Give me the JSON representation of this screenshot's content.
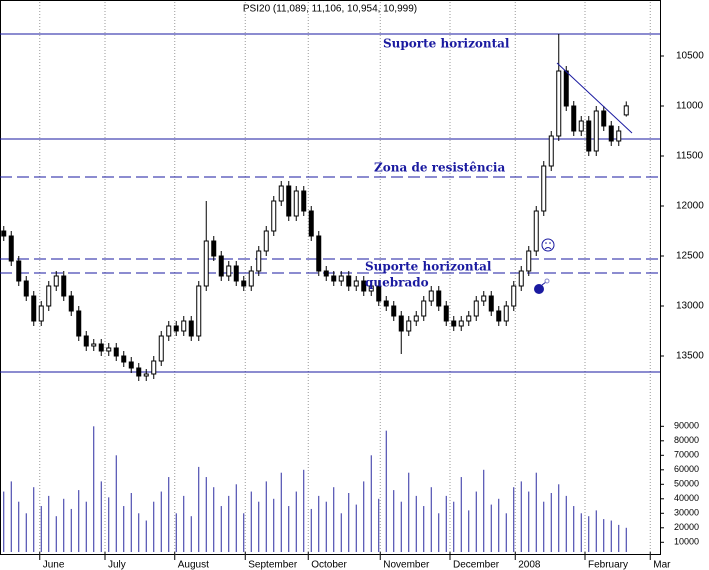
{
  "chart_data": {
    "type": "candlestick",
    "title": "PSI20 (11,089, 11,106, 10,954, 10,999)",
    "categories": [
      null,
      null,
      null,
      null,
      null,
      null,
      null,
      null,
      null,
      null,
      null,
      null,
      null,
      null,
      null,
      null,
      null,
      null,
      null,
      null,
      null,
      null,
      null,
      null,
      null,
      null,
      null,
      null,
      null,
      null,
      null,
      null,
      null,
      null,
      null,
      null,
      null,
      null,
      null,
      null,
      null,
      null,
      null,
      null,
      null,
      null,
      null,
      null,
      null,
      null,
      null,
      null,
      null,
      null,
      null,
      null,
      null,
      null,
      null,
      null,
      null,
      null,
      null,
      null,
      null,
      null,
      null,
      null,
      null,
      null,
      null,
      null,
      null,
      null,
      null,
      null,
      null,
      null,
      null,
      null,
      null,
      null,
      null,
      null
    ],
    "open": [
      12250,
      12300,
      12550,
      12750,
      12900,
      13150,
      13000,
      12800,
      12700,
      12900,
      13050,
      13300,
      13400,
      13380,
      13450,
      13420,
      13500,
      13560,
      13620,
      13700,
      13680,
      13550,
      13300,
      13200,
      13250,
      13150,
      13300,
      12800,
      12350,
      12500,
      12700,
      12600,
      12750,
      12800,
      12650,
      12450,
      12250,
      11950,
      11800,
      12100,
      11850,
      12050,
      12300,
      12650,
      12700,
      12750,
      12700,
      12800,
      12750,
      12850,
      12800,
      12950,
      13000,
      13100,
      13250,
      13150,
      13100,
      12950,
      12850,
      13000,
      13150,
      13200,
      13150,
      13100,
      12950,
      12900,
      13050,
      13150,
      13000,
      12800,
      12650,
      12450,
      12050,
      11600,
      11300,
      10650,
      11000,
      11250,
      11150,
      11450,
      11050,
      11200,
      11350,
      11089
    ],
    "high": [
      12350,
      12600,
      12800,
      12950,
      13200,
      13200,
      13050,
      12850,
      12950,
      13100,
      13350,
      13450,
      13450,
      13500,
      13500,
      13550,
      13610,
      13670,
      13750,
      13750,
      13730,
      13600,
      13350,
      13300,
      13300,
      13350,
      13350,
      12850,
      12550,
      12750,
      12750,
      12800,
      12850,
      12850,
      12700,
      12500,
      12300,
      12000,
      12150,
      12150,
      12100,
      12350,
      12700,
      12750,
      12800,
      12800,
      12850,
      12850,
      12900,
      12900,
      13000,
      13050,
      13150,
      13480,
      13300,
      13200,
      13150,
      13000,
      13050,
      13200,
      13250,
      13250,
      13200,
      13150,
      13000,
      13100,
      13200,
      13200,
      13050,
      12850,
      12700,
      12500,
      12100,
      11650,
      11350,
      11050,
      11300,
      11300,
      11500,
      11500,
      11250,
      11400,
      11400,
      11106
    ],
    "low": [
      12200,
      12250,
      12500,
      12700,
      12850,
      12950,
      12750,
      12650,
      12650,
      12850,
      13000,
      13250,
      13330,
      13330,
      13370,
      13370,
      13450,
      13510,
      13570,
      13630,
      13500,
      13250,
      13150,
      13150,
      13100,
      13100,
      12750,
      11950,
      12300,
      12450,
      12550,
      12550,
      12700,
      12600,
      12400,
      12200,
      11900,
      11750,
      11750,
      11800,
      11800,
      12000,
      12250,
      12600,
      12650,
      12650,
      12650,
      12700,
      12700,
      12750,
      12750,
      12900,
      12950,
      13050,
      13100,
      13050,
      12900,
      12800,
      12800,
      12950,
      13100,
      13100,
      13050,
      12900,
      12850,
      12850,
      13000,
      12950,
      12750,
      12600,
      12400,
      12000,
      11550,
      11250,
      10280,
      10600,
      10950,
      11100,
      11100,
      11000,
      11000,
      11150,
      11200,
      10954
    ],
    "close": [
      12300,
      12550,
      12750,
      12900,
      13150,
      13000,
      12800,
      12700,
      12900,
      13050,
      13300,
      13400,
      13380,
      13450,
      13420,
      13500,
      13560,
      13620,
      13700,
      13680,
      13550,
      13300,
      13200,
      13250,
      13150,
      13300,
      12800,
      12350,
      12500,
      12700,
      12600,
      12750,
      12800,
      12650,
      12450,
      12250,
      11950,
      11800,
      12100,
      11850,
      12050,
      12300,
      12650,
      12700,
      12750,
      12700,
      12800,
      12750,
      12850,
      12800,
      12950,
      13000,
      13100,
      13250,
      13150,
      13100,
      12950,
      12850,
      13000,
      13150,
      13200,
      13150,
      13100,
      12950,
      12900,
      13050,
      13150,
      13000,
      12800,
      12650,
      12450,
      12050,
      11600,
      11300,
      10650,
      11000,
      11250,
      11150,
      11450,
      11050,
      11200,
      11350,
      11250,
      10999
    ],
    "volume": [
      45000,
      52000,
      38000,
      30000,
      48000,
      35000,
      42000,
      28000,
      40000,
      33000,
      46000,
      38000,
      90000,
      52000,
      41000,
      70000,
      35000,
      44000,
      30000,
      25000,
      38000,
      45000,
      55000,
      30000,
      42000,
      28000,
      62000,
      55000,
      48000,
      35000,
      42000,
      50000,
      30000,
      45000,
      38000,
      52000,
      40000,
      58000,
      35000,
      45000,
      60000,
      33000,
      42000,
      38000,
      48000,
      30000,
      44000,
      36000,
      52000,
      70000,
      40000,
      87000,
      46000,
      38000,
      58000,
      42000,
      35000,
      48000,
      30000,
      42000,
      38000,
      55000,
      32000,
      45000,
      60000,
      36000,
      40000,
      30000,
      48000,
      52000,
      45000,
      58000,
      38000,
      44000,
      50000,
      42000,
      35000,
      30000,
      28000,
      32000,
      26000,
      25000,
      22000,
      20000
    ],
    "up_color": "#ffffff",
    "down_color": "#000000",
    "volume_color": "#2a2aa0",
    "line_color": "#1a1aa0",
    "ylim": [
      13790,
      9960
    ],
    "yticks": [
      10500,
      11000,
      11500,
      12000,
      12500,
      13000,
      13500
    ],
    "vlim": [
      3300,
      104700
    ],
    "vticks": [
      10000,
      20000,
      30000,
      40000,
      50000,
      60000,
      70000,
      80000,
      90000
    ],
    "xlim": [
      -0.5,
      87.5
    ],
    "xticks": [
      {
        "value": 4.8,
        "label": "June"
      },
      {
        "value": 13.5,
        "label": "July"
      },
      {
        "value": 22.8,
        "label": "August"
      },
      {
        "value": 32.2,
        "label": "September"
      },
      {
        "value": 40.6,
        "label": "October"
      },
      {
        "value": 50.2,
        "label": "November"
      },
      {
        "value": 59.5,
        "label": "December"
      },
      {
        "value": 68.2,
        "label": "2008"
      },
      {
        "value": 77.5,
        "label": "February"
      },
      {
        "value": 86.2,
        "label": "Mar"
      }
    ],
    "grid": true,
    "lines": [
      {
        "value": 10280,
        "style": "solid"
      },
      {
        "value": 11330,
        "style": "solid"
      },
      {
        "value": 11710,
        "style": "dashed"
      },
      {
        "value": 12530,
        "style": "dashed"
      },
      {
        "value": 12670,
        "style": "dashed"
      },
      {
        "value": 13660,
        "style": "solid"
      }
    ],
    "annotations": [
      "Suporte horizontal",
      "Zona de resistência",
      "Suporte horizontal",
      "quebrado"
    ]
  }
}
